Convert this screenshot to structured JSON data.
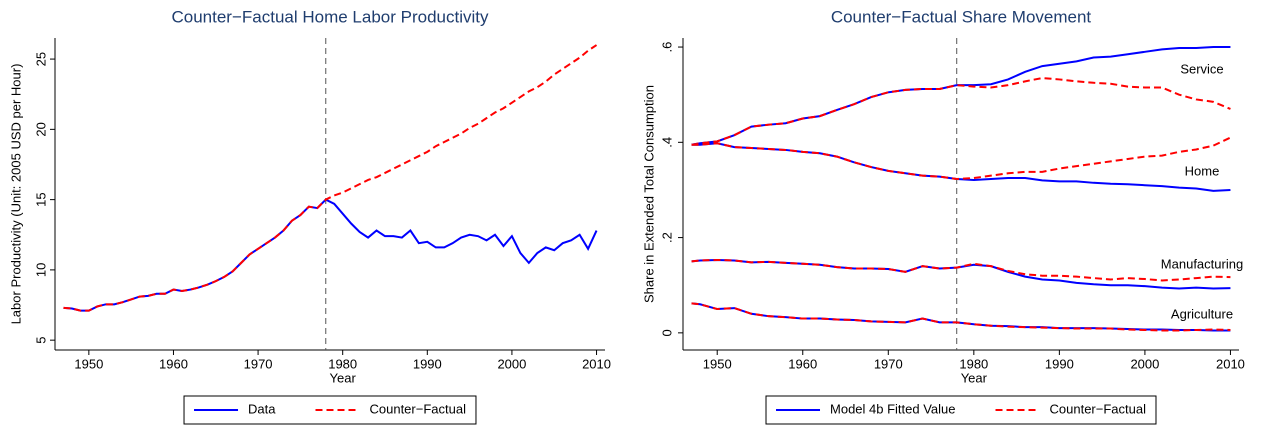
{
  "chart_data": [
    {
      "type": "line",
      "title": "Counter−Factual Home Labor Productivity",
      "xlabel": "Year",
      "ylabel": "Labor Productivity (Unit: 2005 USD per Hour)",
      "x": [
        1947,
        1948,
        1949,
        1950,
        1951,
        1952,
        1953,
        1954,
        1955,
        1956,
        1957,
        1958,
        1959,
        1960,
        1961,
        1962,
        1963,
        1964,
        1965,
        1966,
        1967,
        1968,
        1969,
        1970,
        1971,
        1972,
        1973,
        1974,
        1975,
        1976,
        1977,
        1978,
        1979,
        1980,
        1981,
        1982,
        1983,
        1984,
        1985,
        1986,
        1987,
        1988,
        1989,
        1990,
        1991,
        1992,
        1993,
        1994,
        1995,
        1996,
        1997,
        1998,
        1999,
        2000,
        2001,
        2002,
        2003,
        2004,
        2005,
        2006,
        2007,
        2008,
        2009,
        2010
      ],
      "series": [
        {
          "name": "Data",
          "color": "#0000ff",
          "dash": false,
          "values": [
            7.3,
            7.25,
            7.1,
            7.1,
            7.4,
            7.55,
            7.55,
            7.7,
            7.9,
            8.1,
            8.15,
            8.3,
            8.3,
            8.6,
            8.5,
            8.6,
            8.75,
            8.95,
            9.2,
            9.5,
            9.9,
            10.5,
            11.1,
            11.5,
            11.9,
            12.3,
            12.8,
            13.5,
            13.9,
            14.5,
            14.4,
            15.0,
            14.7,
            14.0,
            13.3,
            12.7,
            12.3,
            12.8,
            12.4,
            12.4,
            12.3,
            12.8,
            11.9,
            12.0,
            11.6,
            11.6,
            11.9,
            12.3,
            12.5,
            12.4,
            12.1,
            12.5,
            11.7,
            12.4,
            11.2,
            10.5,
            11.2,
            11.6,
            11.4,
            11.9,
            12.1,
            12.5,
            11.5,
            12.8
          ]
        },
        {
          "name": "Counter−Factual",
          "color": "#ff0000",
          "dash": true,
          "values": [
            7.3,
            7.25,
            7.1,
            7.1,
            7.4,
            7.55,
            7.55,
            7.7,
            7.9,
            8.1,
            8.15,
            8.3,
            8.3,
            8.6,
            8.5,
            8.6,
            8.75,
            8.95,
            9.2,
            9.5,
            9.9,
            10.5,
            11.1,
            11.5,
            11.9,
            12.3,
            12.8,
            13.5,
            13.9,
            14.5,
            14.4,
            15.0,
            15.3,
            15.5,
            15.8,
            16.1,
            16.4,
            16.6,
            16.9,
            17.2,
            17.5,
            17.8,
            18.1,
            18.4,
            18.8,
            19.1,
            19.4,
            19.7,
            20.1,
            20.4,
            20.8,
            21.2,
            21.5,
            21.9,
            22.3,
            22.7,
            23.0,
            23.4,
            23.9,
            24.3,
            24.7,
            25.1,
            25.6,
            26.0
          ]
        }
      ],
      "xlim": [
        1946,
        2011
      ],
      "xticks": [
        1950,
        1960,
        1970,
        1980,
        1990,
        2000,
        2010
      ],
      "ylim": [
        4.3,
        26.5
      ],
      "yticks": [
        5,
        10,
        15,
        20,
        25
      ],
      "vline": 1978
    },
    {
      "type": "sector_lines",
      "title": "Counter−Factual Share Movement",
      "xlabel": "Year",
      "ylabel": "Share in Extended Total Consumption",
      "x": [
        1947,
        1948,
        1950,
        1952,
        1954,
        1956,
        1958,
        1960,
        1962,
        1964,
        1966,
        1968,
        1970,
        1972,
        1974,
        1976,
        1978,
        1980,
        1982,
        1984,
        1986,
        1988,
        1990,
        1992,
        1994,
        1996,
        1998,
        2000,
        2002,
        2004,
        2006,
        2008,
        2010
      ],
      "series": [
        {
          "name": "Model 4b Fitted Value",
          "color": "#0000ff",
          "dash": false
        },
        {
          "name": "Counter−Factual",
          "color": "#ff0000",
          "dash": true
        }
      ],
      "sectors": [
        {
          "label": "Service",
          "fitted": [
            0.395,
            0.398,
            0.402,
            0.415,
            0.433,
            0.437,
            0.44,
            0.45,
            0.455,
            0.468,
            0.48,
            0.495,
            0.505,
            0.51,
            0.512,
            0.512,
            0.52,
            0.52,
            0.522,
            0.532,
            0.548,
            0.56,
            0.565,
            0.57,
            0.578,
            0.58,
            0.585,
            0.59,
            0.595,
            0.598,
            0.598,
            0.6,
            0.6
          ],
          "counter_factual": [
            0.395,
            0.398,
            0.402,
            0.415,
            0.433,
            0.437,
            0.44,
            0.45,
            0.455,
            0.468,
            0.48,
            0.495,
            0.505,
            0.51,
            0.512,
            0.512,
            0.52,
            0.517,
            0.515,
            0.52,
            0.528,
            0.535,
            0.532,
            0.528,
            0.525,
            0.523,
            0.517,
            0.515,
            0.515,
            0.5,
            0.49,
            0.485,
            0.47
          ]
        },
        {
          "label": "Home",
          "fitted": [
            0.395,
            0.395,
            0.398,
            0.39,
            0.388,
            0.386,
            0.384,
            0.38,
            0.377,
            0.37,
            0.358,
            0.348,
            0.34,
            0.335,
            0.33,
            0.328,
            0.323,
            0.321,
            0.323,
            0.325,
            0.325,
            0.32,
            0.318,
            0.318,
            0.315,
            0.313,
            0.312,
            0.31,
            0.308,
            0.305,
            0.303,
            0.298,
            0.3
          ],
          "counter_factual": [
            0.395,
            0.395,
            0.398,
            0.39,
            0.388,
            0.386,
            0.384,
            0.38,
            0.377,
            0.37,
            0.358,
            0.348,
            0.34,
            0.335,
            0.33,
            0.328,
            0.323,
            0.325,
            0.33,
            0.335,
            0.338,
            0.338,
            0.345,
            0.35,
            0.355,
            0.36,
            0.365,
            0.37,
            0.372,
            0.38,
            0.385,
            0.393,
            0.41
          ]
        },
        {
          "label": "Manufacturing",
          "fitted": [
            0.15,
            0.152,
            0.153,
            0.152,
            0.148,
            0.149,
            0.147,
            0.145,
            0.143,
            0.138,
            0.135,
            0.135,
            0.134,
            0.128,
            0.14,
            0.135,
            0.137,
            0.143,
            0.14,
            0.128,
            0.118,
            0.112,
            0.11,
            0.105,
            0.102,
            0.1,
            0.1,
            0.098,
            0.095,
            0.093,
            0.095,
            0.093,
            0.094
          ],
          "counter_factual": [
            0.15,
            0.152,
            0.153,
            0.152,
            0.148,
            0.149,
            0.147,
            0.145,
            0.143,
            0.138,
            0.135,
            0.135,
            0.134,
            0.128,
            0.14,
            0.135,
            0.137,
            0.145,
            0.14,
            0.13,
            0.123,
            0.12,
            0.12,
            0.118,
            0.115,
            0.112,
            0.115,
            0.113,
            0.11,
            0.112,
            0.115,
            0.118,
            0.117
          ]
        },
        {
          "label": "Agriculture",
          "fitted": [
            0.062,
            0.06,
            0.05,
            0.052,
            0.04,
            0.035,
            0.033,
            0.03,
            0.03,
            0.028,
            0.027,
            0.024,
            0.023,
            0.022,
            0.03,
            0.022,
            0.022,
            0.018,
            0.015,
            0.014,
            0.012,
            0.012,
            0.01,
            0.01,
            0.01,
            0.009,
            0.008,
            0.007,
            0.007,
            0.006,
            0.006,
            0.005,
            0.005
          ],
          "counter_factual": [
            0.062,
            0.06,
            0.05,
            0.052,
            0.04,
            0.035,
            0.033,
            0.03,
            0.03,
            0.028,
            0.027,
            0.024,
            0.023,
            0.022,
            0.03,
            0.022,
            0.022,
            0.018,
            0.015,
            0.013,
            0.012,
            0.011,
            0.01,
            0.009,
            0.009,
            0.009,
            0.007,
            0.006,
            0.005,
            0.005,
            0.006,
            0.007,
            0.006
          ]
        }
      ],
      "xlim": [
        1946,
        2011
      ],
      "xticks": [
        1950,
        1960,
        1970,
        1980,
        1990,
        2000,
        2010
      ],
      "ylim": [
        -0.036,
        0.619
      ],
      "yticks": [
        0,
        {
          "value": 0.2,
          "label": ".2"
        },
        {
          "value": 0.4,
          "label": ".4"
        },
        {
          "value": 0.6,
          "label": ".6"
        }
      ],
      "vline": 1978
    }
  ]
}
